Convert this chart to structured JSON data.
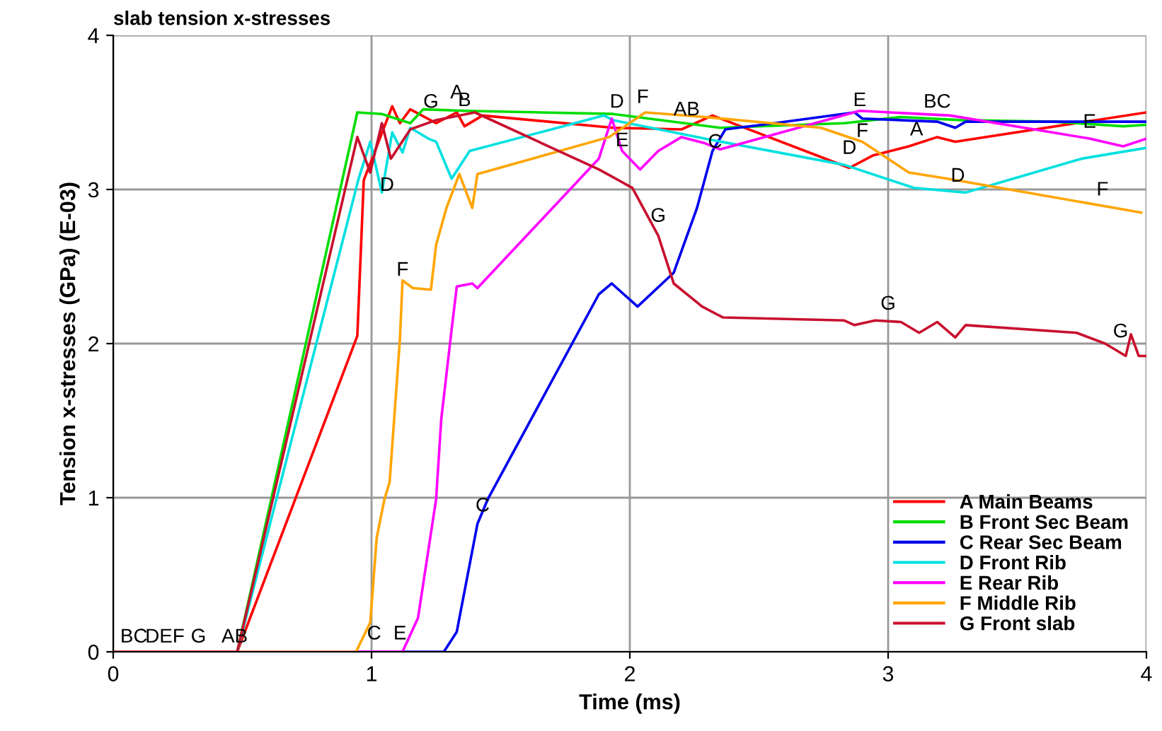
{
  "chart_data": {
    "type": "line",
    "title": "slab tension x-stresses",
    "xlabel": "Time (ms)",
    "ylabel": "Tension x-stresses (GPa) (E-03)",
    "xlim": [
      0,
      4
    ],
    "xticks": [
      0,
      1,
      2,
      3,
      4
    ],
    "ylim": [
      0,
      4
    ],
    "yticks": [
      0,
      1,
      2,
      3,
      4
    ],
    "grid": true,
    "legend": "bottom right",
    "series": [
      {
        "name": "A Main Beams",
        "color": "#ff0000",
        "x": [
          0,
          0.48,
          0.945,
          0.97,
          1.08,
          1.11,
          1.15,
          1.25,
          1.33,
          1.36,
          1.43,
          1.935,
          2.2,
          2.32,
          2.85,
          2.94,
          3.08,
          3.19,
          3.26,
          4.0
        ],
        "values": [
          0,
          0,
          2.05,
          3.06,
          3.54,
          3.43,
          3.52,
          3.43,
          3.5,
          3.41,
          3.48,
          3.4,
          3.39,
          3.48,
          3.14,
          3.22,
          3.28,
          3.34,
          3.31,
          3.5
        ]
      },
      {
        "name": "B Front Sec Beam",
        "color": "#00dd00",
        "x": [
          0,
          0.48,
          0.945,
          1.04,
          1.15,
          1.2,
          1.36,
          1.935,
          2.35,
          2.83,
          3.05,
          3.28,
          3.64,
          3.91,
          4.0
        ],
        "values": [
          0,
          0,
          3.5,
          3.49,
          3.43,
          3.52,
          3.51,
          3.49,
          3.4,
          3.43,
          3.47,
          3.45,
          3.44,
          3.41,
          3.42
        ]
      },
      {
        "name": "C Rear Sec Beam",
        "color": "#0000ee",
        "x": [
          0,
          1.28,
          1.33,
          1.41,
          1.45,
          1.88,
          1.93,
          2.03,
          2.17,
          2.26,
          2.32,
          2.37,
          2.56,
          2.87,
          2.9,
          3.19,
          3.26,
          3.3,
          4.0
        ],
        "values": [
          0,
          0,
          0.13,
          0.83,
          0.99,
          2.32,
          2.39,
          2.24,
          2.46,
          2.88,
          3.25,
          3.39,
          3.43,
          3.5,
          3.46,
          3.44,
          3.4,
          3.44,
          3.44
        ]
      },
      {
        "name": "D Front Rib",
        "color": "#00e0e0",
        "x": [
          0,
          0.48,
          0.95,
          0.995,
          1.04,
          1.08,
          1.12,
          1.15,
          1.22,
          1.25,
          1.31,
          1.38,
          1.9,
          1.935,
          2.29,
          2.83,
          3.1,
          3.3,
          3.75,
          4.0
        ],
        "values": [
          0,
          0,
          3.07,
          3.31,
          2.98,
          3.37,
          3.24,
          3.4,
          3.33,
          3.31,
          3.07,
          3.25,
          3.48,
          3.45,
          3.33,
          3.16,
          3.01,
          2.98,
          3.2,
          3.27
        ]
      },
      {
        "name": "E Rear Rib",
        "color": "#ff00ff",
        "x": [
          0,
          1.12,
          1.18,
          1.25,
          1.27,
          1.31,
          1.33,
          1.39,
          1.41,
          1.88,
          1.93,
          1.97,
          2.04,
          2.11,
          2.2,
          2.29,
          2.35,
          2.89,
          3.24,
          3.78,
          3.91,
          4.0
        ],
        "values": [
          0,
          0,
          0.22,
          0.99,
          1.51,
          2.09,
          2.37,
          2.39,
          2.36,
          3.2,
          3.46,
          3.25,
          3.13,
          3.25,
          3.34,
          3.3,
          3.26,
          3.51,
          3.48,
          3.33,
          3.28,
          3.33
        ]
      },
      {
        "name": "F Middle Rib",
        "color": "#ffa500",
        "x": [
          0,
          0.94,
          0.995,
          1.02,
          1.05,
          1.07,
          1.11,
          1.12,
          1.16,
          1.23,
          1.25,
          1.29,
          1.34,
          1.39,
          1.41,
          1.92,
          2.06,
          2.29,
          2.74,
          2.9,
          3.08,
          3.23,
          3.98
        ],
        "values": [
          0,
          0,
          0.19,
          0.74,
          0.99,
          1.1,
          2.03,
          2.41,
          2.36,
          2.35,
          2.64,
          2.88,
          3.1,
          2.88,
          3.1,
          3.34,
          3.5,
          3.47,
          3.4,
          3.31,
          3.11,
          3.07,
          2.85
        ]
      },
      {
        "name": "G Front slab",
        "color": "#c8102e",
        "x": [
          0,
          0.48,
          0.945,
          0.995,
          1.04,
          1.075,
          1.15,
          1.25,
          1.4,
          1.88,
          1.935,
          2.01,
          2.11,
          2.17,
          2.28,
          2.36,
          2.83,
          2.87,
          2.95,
          3.05,
          3.12,
          3.19,
          3.26,
          3.3,
          3.73,
          3.84,
          3.92,
          3.94,
          3.97,
          4.0
        ],
        "values": [
          0,
          0,
          3.34,
          3.11,
          3.43,
          3.2,
          3.39,
          3.45,
          3.5,
          3.13,
          3.08,
          3.01,
          2.7,
          2.39,
          2.24,
          2.17,
          2.15,
          2.12,
          2.15,
          2.14,
          2.07,
          2.14,
          2.04,
          2.12,
          2.07,
          2.0,
          1.92,
          2.06,
          1.92,
          1.92
        ]
      }
    ],
    "annotations": [
      {
        "text": "BC",
        "x": 0.08,
        "y": 0.03
      },
      {
        "text": "DEF",
        "x": 0.2,
        "y": 0.03
      },
      {
        "text": "G",
        "x": 0.33,
        "y": 0.03
      },
      {
        "text": "AB",
        "x": 0.47,
        "y": 0.03
      },
      {
        "text": "G",
        "x": 1.23,
        "y": 3.5
      },
      {
        "text": "A",
        "x": 1.33,
        "y": 3.56
      },
      {
        "text": "B",
        "x": 1.36,
        "y": 3.51
      },
      {
        "text": "D",
        "x": 1.06,
        "y": 2.96
      },
      {
        "text": "F",
        "x": 1.12,
        "y": 2.41
      },
      {
        "text": "D",
        "x": 1.95,
        "y": 3.5
      },
      {
        "text": "F",
        "x": 2.05,
        "y": 3.53
      },
      {
        "text": "E",
        "x": 1.97,
        "y": 3.25
      },
      {
        "text": "AB",
        "x": 2.22,
        "y": 3.45
      },
      {
        "text": "C",
        "x": 2.33,
        "y": 3.24
      },
      {
        "text": "G",
        "x": 2.11,
        "y": 2.76
      },
      {
        "text": "E",
        "x": 2.89,
        "y": 3.51
      },
      {
        "text": "F",
        "x": 2.9,
        "y": 3.31
      },
      {
        "text": "D",
        "x": 2.85,
        "y": 3.2
      },
      {
        "text": "BC",
        "x": 3.19,
        "y": 3.5
      },
      {
        "text": "A",
        "x": 3.11,
        "y": 3.32
      },
      {
        "text": "D",
        "x": 3.27,
        "y": 3.02
      },
      {
        "text": "E",
        "x": 3.78,
        "y": 3.37
      },
      {
        "text": "F",
        "x": 3.83,
        "y": 2.93
      },
      {
        "text": "G",
        "x": 3.0,
        "y": 2.19
      },
      {
        "text": "G",
        "x": 3.9,
        "y": 2.01
      },
      {
        "text": "C",
        "x": 1.43,
        "y": 0.88
      },
      {
        "text": "C",
        "x": 1.01,
        "y": 0.05
      },
      {
        "text": "E",
        "x": 1.11,
        "y": 0.05
      }
    ]
  }
}
